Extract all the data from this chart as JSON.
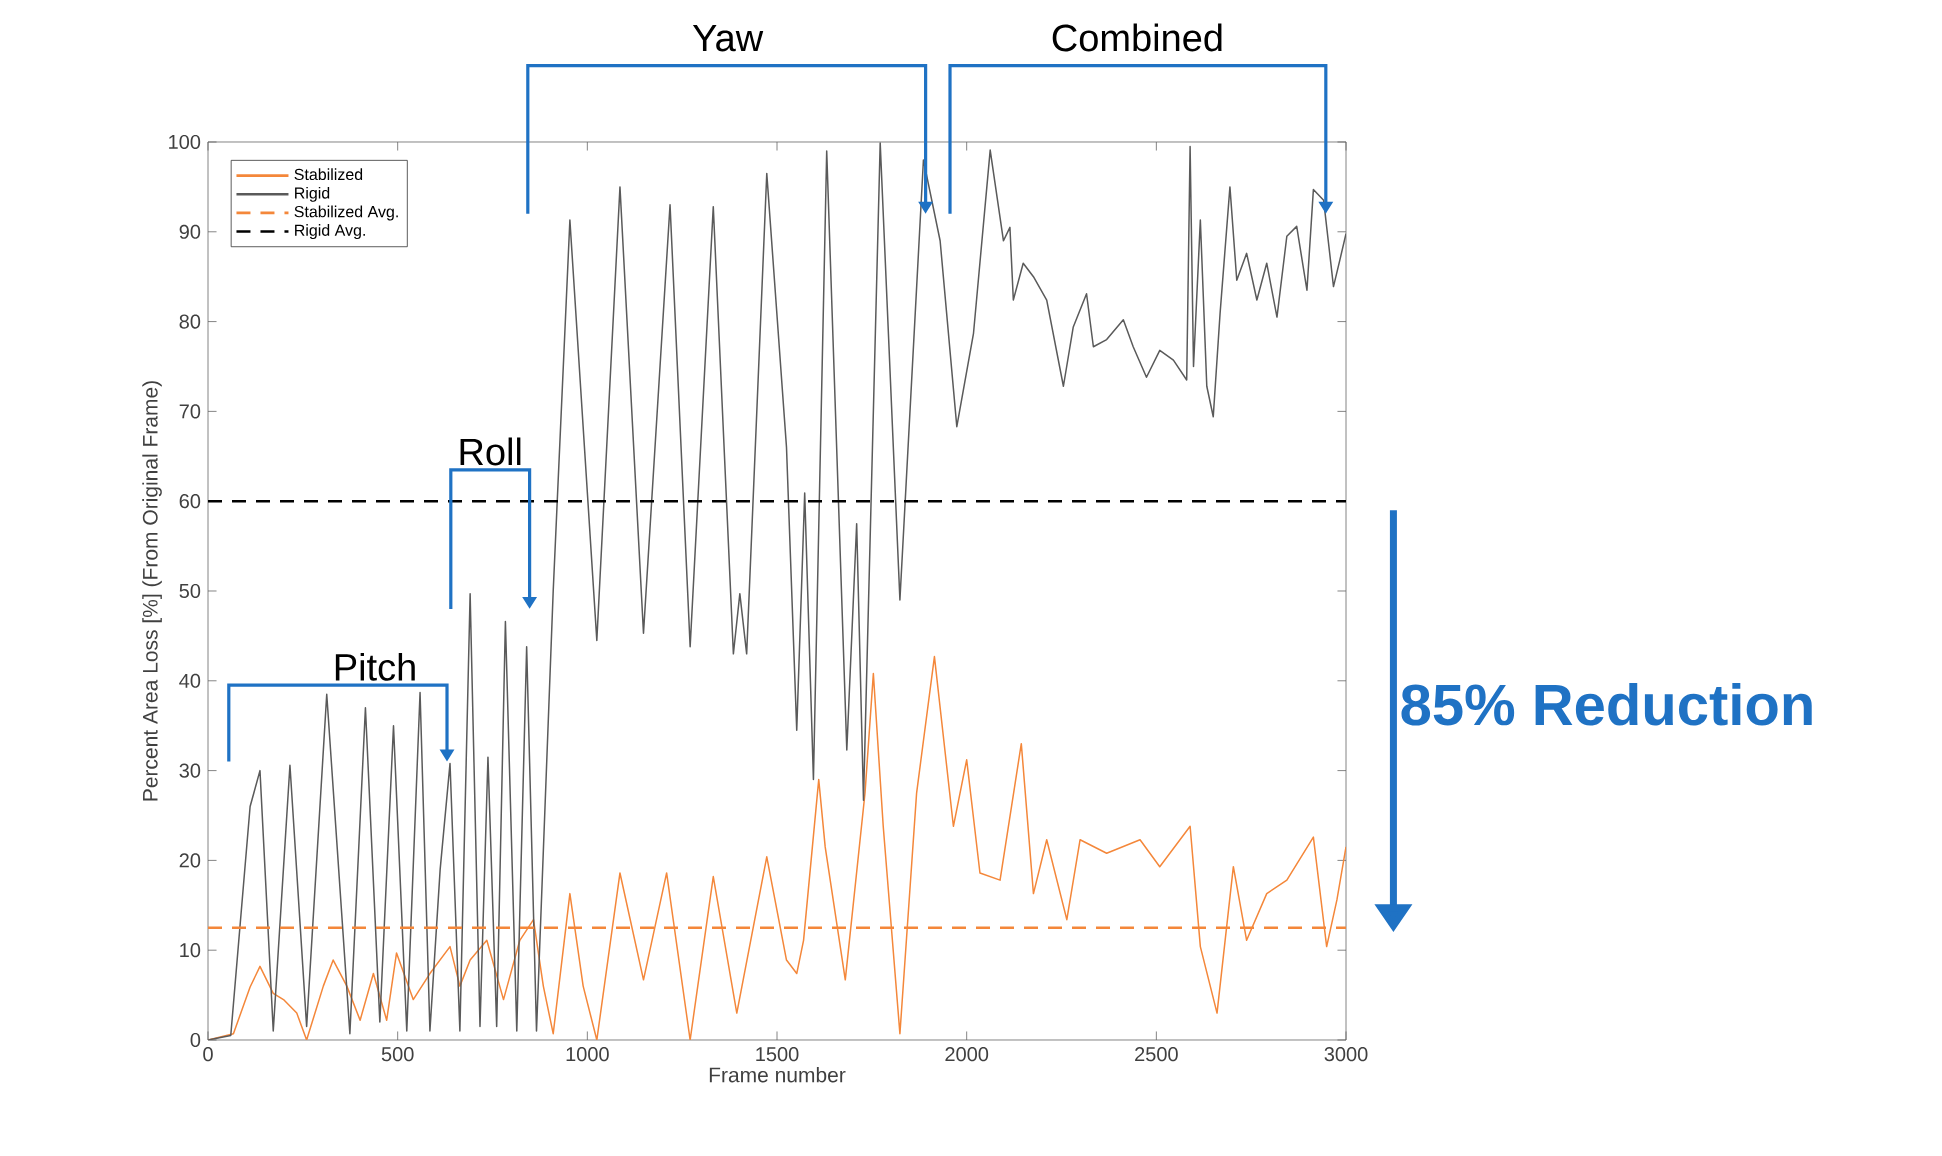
{
  "chart_data": {
    "type": "line",
    "xlabel": "Frame number",
    "ylabel": "Percent Area Loss [%] (From Original Frame)",
    "xlim": [
      0,
      3000
    ],
    "ylim": [
      0,
      100
    ],
    "xticks": [
      0,
      500,
      1000,
      1500,
      2000,
      2500,
      3000
    ],
    "yticks": [
      0,
      10,
      20,
      30,
      40,
      50,
      60,
      70,
      80,
      90,
      100
    ],
    "grid": false,
    "legend": "top left",
    "line_style": "solid",
    "marker": "none",
    "series": [
      {
        "name": "Stabilized",
        "color": "#f4873a",
        "x": [
          0,
          67,
          111,
          137,
          172,
          199,
          234,
          260,
          304,
          330,
          366,
          401,
          436,
          471,
          497,
          541,
          585,
          638,
          664,
          691,
          735,
          779,
          822,
          858,
          884,
          910,
          954,
          989,
          1025,
          1086,
          1148,
          1209,
          1271,
          1332,
          1394,
          1473,
          1525,
          1552,
          1570,
          1610,
          1627,
          1680,
          1732,
          1754,
          1780,
          1824,
          1868,
          1915,
          1965,
          2000,
          2035,
          2088,
          2144,
          2176,
          2211,
          2264,
          2299,
          2369,
          2457,
          2509,
          2589,
          2616,
          2660,
          2703,
          2738,
          2791,
          2844,
          2914,
          2949,
          2976,
          3000
        ],
        "values": [
          0,
          0.7,
          5.9,
          8.2,
          5.2,
          4.5,
          3,
          0,
          6,
          8.9,
          6,
          2.2,
          7.4,
          2.2,
          9.7,
          4.5,
          7.4,
          10.4,
          6,
          8.9,
          11.1,
          4.5,
          11.1,
          13.4,
          6,
          0.7,
          16.3,
          6,
          0,
          18.6,
          6.7,
          18.6,
          0,
          18.2,
          3,
          20.4,
          8.9,
          7.4,
          11.1,
          29,
          21.5,
          6.7,
          27.5,
          40.8,
          23.8,
          0.7,
          27.5,
          42.7,
          23.8,
          31.2,
          18.6,
          17.8,
          33,
          16.3,
          22.3,
          13.4,
          22.3,
          20.8,
          22.3,
          19.3,
          23.8,
          10.4,
          3,
          19.3,
          11.1,
          16.3,
          17.8,
          22.6,
          10.4,
          15.6,
          21.5
        ]
      },
      {
        "name": "Rigid",
        "color": "#5a5a5a",
        "x": [
          0,
          60,
          111,
          137,
          172,
          216,
          260,
          313,
          374,
          415,
          453,
          489,
          524,
          559,
          585,
          612,
          638,
          664,
          691,
          717,
          738,
          761,
          784,
          814,
          840,
          866,
          910,
          954,
          1025,
          1086,
          1148,
          1218,
          1271,
          1332,
          1385,
          1402,
          1420,
          1473,
          1525,
          1552,
          1573,
          1596,
          1631,
          1684,
          1710,
          1728,
          1772,
          1824,
          1886,
          1930,
          1974,
          2018,
          2062,
          2097,
          2114,
          2123,
          2149,
          2176,
          2211,
          2255,
          2281,
          2316,
          2334,
          2369,
          2413,
          2439,
          2474,
          2509,
          2545,
          2580,
          2589,
          2598,
          2616,
          2633,
          2650,
          2668,
          2694,
          2712,
          2738,
          2765,
          2791,
          2818,
          2844,
          2870,
          2897,
          2914,
          2941,
          2967,
          2984,
          3000
        ],
        "values": [
          0,
          0.5,
          26,
          30,
          1,
          30.6,
          1.5,
          38.5,
          0.7,
          37,
          2,
          35,
          1,
          38.7,
          1,
          19,
          30.8,
          1,
          49.7,
          1.5,
          31.5,
          1.5,
          46.6,
          1,
          43.8,
          1,
          50,
          91.3,
          44.5,
          95,
          45.3,
          93,
          43.8,
          92.8,
          43,
          49.7,
          43,
          96.5,
          66,
          34.5,
          60.9,
          29,
          99,
          32.3,
          57.5,
          26.7,
          99.9,
          49,
          98,
          89,
          68.3,
          78.7,
          99.1,
          89,
          90.5,
          82.4,
          86.5,
          85,
          82.4,
          72.8,
          79.4,
          83.1,
          77.2,
          78,
          80.2,
          77.2,
          73.8,
          76.8,
          75.7,
          73.5,
          99.5,
          75,
          91.3,
          72.8,
          69.4,
          80.9,
          95,
          84.6,
          87.6,
          82.4,
          86.5,
          80.5,
          89.5,
          90.6,
          83.5,
          94.7,
          93.5,
          83.9,
          86.9,
          89.8
        ]
      }
    ],
    "ref_lines": [
      {
        "axis": "y",
        "value": 12.5,
        "label": "Stabilized Avg.",
        "color": "#f4873a",
        "line_style": "dashed"
      },
      {
        "axis": "y",
        "value": 60,
        "label": "Rigid Avg.",
        "color": "#000000",
        "line_style": "dashed"
      }
    ],
    "annotations": [
      "Pitch",
      "Roll",
      "Yaw",
      "Combined",
      "85% Reduction"
    ]
  }
}
